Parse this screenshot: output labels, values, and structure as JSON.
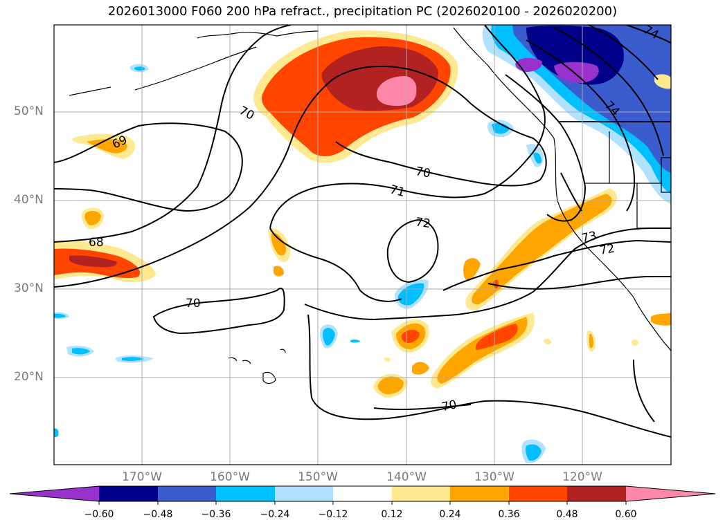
{
  "title": "2026013000 F060 200 hPa refract., precipitation PC (2026020100 - 2026020200)",
  "latitudes": [
    {
      "label": "50°N",
      "value": 50
    },
    {
      "label": "40°N",
      "value": 40
    },
    {
      "label": "30°N",
      "value": 30
    },
    {
      "label": "20°N",
      "value": 20
    }
  ],
  "longitudes": [
    {
      "label": "170°W",
      "value": -170
    },
    {
      "label": "160°W",
      "value": -160
    },
    {
      "label": "150°W",
      "value": -150
    },
    {
      "label": "140°W",
      "value": -140
    },
    {
      "label": "130°W",
      "value": -130
    },
    {
      "label": "120°W",
      "value": -120
    }
  ],
  "contour_labels": [
    "70",
    "69",
    "70",
    "71",
    "72",
    "68",
    "73",
    "72",
    "70",
    "70",
    "74",
    "74"
  ],
  "colorbar": {
    "ticks": [
      "−0.60",
      "−0.48",
      "−0.36",
      "−0.24",
      "−0.12",
      "0.12",
      "0.24",
      "0.36",
      "0.48",
      "0.60"
    ],
    "colors": [
      "#9932cc",
      "#00008b",
      "#3a5ccc",
      "#00bfff",
      "#b0e2ff",
      "#ffffff",
      "#ffe990",
      "#ffa500",
      "#ff4500",
      "#b22222",
      "#ff88aa"
    ]
  },
  "colors": {
    "pink": "#ff88aa",
    "darkred": "#b22222",
    "orangered": "#ff4500",
    "orange": "#ffa500",
    "paleyellow": "#ffe990",
    "lightblue": "#b0e2ff",
    "deepskyblue": "#00bfff",
    "royalblue": "#3a5ccc",
    "navy": "#00008b",
    "purple": "#9932cc"
  }
}
